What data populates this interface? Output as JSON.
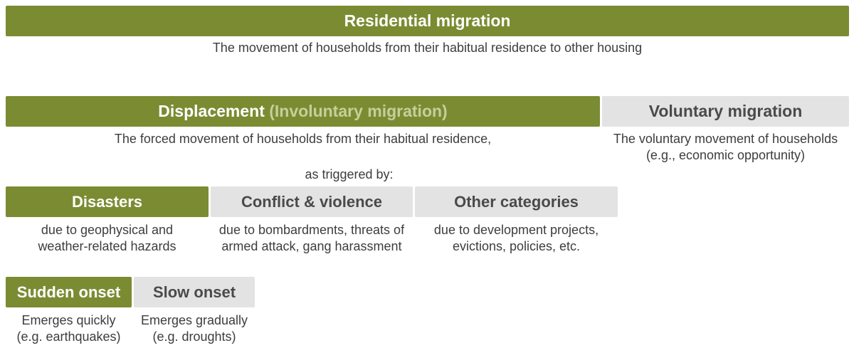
{
  "residential": {
    "title": "Residential migration",
    "description": "The movement of households from their habitual residence to other housing"
  },
  "displacement": {
    "title": "Displacement",
    "subtitle": "(Involuntary migration)",
    "description": "The forced movement of households from their habitual residence,",
    "trigger": "as triggered by:"
  },
  "voluntary": {
    "title": "Voluntary migration",
    "description_lines": [
      "The voluntary movement of households",
      "(e.g., economic opportunity)"
    ]
  },
  "disasters": {
    "title": "Disasters",
    "description_lines": [
      "due to geophysical and",
      "weather-related hazards"
    ]
  },
  "conflict": {
    "title": "Conflict & violence",
    "description_lines": [
      "due to bombardments, threats of",
      "armed attack, gang harassment"
    ]
  },
  "other": {
    "title": "Other categories",
    "description_lines": [
      "due to development projects,",
      "evictions, policies, etc."
    ]
  },
  "sudden": {
    "title": "Sudden onset",
    "description_lines": [
      "Emerges quickly",
      "(e.g. earthquakes)"
    ]
  },
  "slow": {
    "title": "Slow onset",
    "description_lines": [
      "Emerges gradually",
      "(e.g. droughts)"
    ]
  },
  "colors": {
    "accent_green": "#7b8b32",
    "neutral_grey": "#e3e3e3",
    "subtitle_green": "#c5cf9a"
  }
}
